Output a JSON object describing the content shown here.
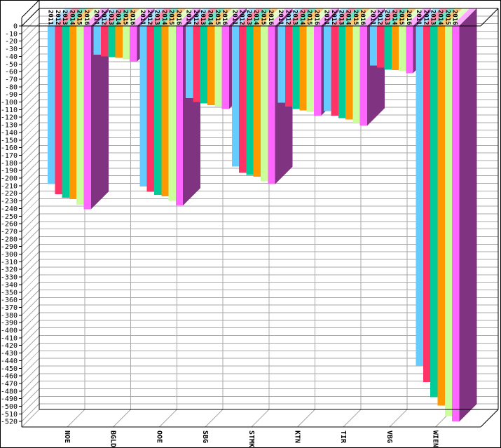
{
  "chart_data": {
    "type": "bar",
    "style": "3d-column-negative",
    "title": "",
    "xlabel": "",
    "ylabel": "",
    "categories": [
      "NOE",
      "BGLD",
      "OOE",
      "SBG",
      "STMK",
      "KTN",
      "TIR",
      "VBG",
      "WIEN"
    ],
    "series": [
      {
        "name": "2011",
        "values": [
          -208,
          -38,
          -211,
          -95,
          -185,
          -101,
          -112,
          -52,
          -447
        ]
      },
      {
        "name": "2012",
        "values": [
          -221,
          -40,
          -218,
          -100,
          -193,
          -106,
          -118,
          -55,
          -468
        ]
      },
      {
        "name": "2013",
        "values": [
          -226,
          -41,
          -222,
          -102,
          -196,
          -109,
          -121,
          -57,
          -488
        ]
      },
      {
        "name": "2014",
        "values": [
          -227,
          -42,
          -224,
          -104,
          -198,
          -111,
          -123,
          -58,
          -499
        ]
      },
      {
        "name": "2015",
        "values": [
          -235,
          -44,
          -230,
          -106,
          -204,
          -113,
          -127,
          -59,
          -513
        ]
      },
      {
        "name": "2016",
        "values": [
          -241,
          -47,
          -236,
          -109,
          -208,
          -118,
          -131,
          -62,
          -520
        ]
      }
    ],
    "y_axis": {
      "min": -520,
      "max": 0,
      "tick_step": 10
    },
    "x_axis": {
      "label_rotation_deg": 90
    },
    "bar_labels": "series year printed vertically above each bar",
    "legend_position": "none",
    "grid": true,
    "colors": {
      "series": [
        "#66CCFF",
        "#FF3366",
        "#00CC99",
        "#FF9900",
        "#CCFF99",
        "#FF66FF"
      ],
      "last_bar_side_face": "#803380",
      "grid_line": "#AAAAAA",
      "frame": "#000000",
      "background": "#FFFFFF",
      "text": "#000000"
    }
  }
}
